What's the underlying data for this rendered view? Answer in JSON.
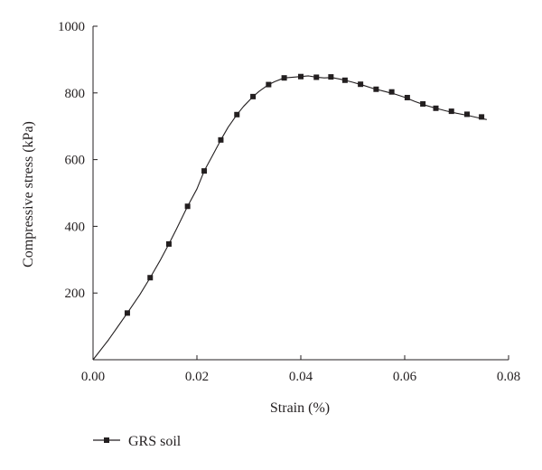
{
  "chart_data": {
    "type": "line",
    "title": "",
    "xlabel": "Strain (%)",
    "ylabel": "Compressive stress (kPa)",
    "xlim": [
      0,
      0.08
    ],
    "ylim": [
      0,
      1000
    ],
    "x_ticks": [
      0.0,
      0.02,
      0.04,
      0.06,
      0.08
    ],
    "x_tick_labels": [
      "0.00",
      "0.02",
      "0.04",
      "0.06",
      "0.08"
    ],
    "y_ticks": [
      200,
      400,
      600,
      800,
      1000
    ],
    "y_tick_labels": [
      "200",
      "400",
      "600",
      "800",
      "1000"
    ],
    "grid": false,
    "legend_position": "bottom-left",
    "series": [
      {
        "name": "GRS soil",
        "color": "#231f20",
        "marker": "square",
        "line": [
          [
            0.0,
            0
          ],
          [
            0.003,
            60
          ],
          [
            0.0066,
            140
          ],
          [
            0.009,
            195
          ],
          [
            0.011,
            246
          ],
          [
            0.013,
            300
          ],
          [
            0.0146,
            347
          ],
          [
            0.016,
            390
          ],
          [
            0.0182,
            460
          ],
          [
            0.02,
            512
          ],
          [
            0.0214,
            566
          ],
          [
            0.023,
            612
          ],
          [
            0.0246,
            659
          ],
          [
            0.026,
            697
          ],
          [
            0.0277,
            735
          ],
          [
            0.029,
            760
          ],
          [
            0.0308,
            789
          ],
          [
            0.032,
            805
          ],
          [
            0.0338,
            825
          ],
          [
            0.035,
            834
          ],
          [
            0.0368,
            845
          ],
          [
            0.0385,
            847
          ],
          [
            0.04,
            849
          ],
          [
            0.0415,
            851
          ],
          [
            0.043,
            847
          ],
          [
            0.0445,
            845
          ],
          [
            0.046,
            846
          ],
          [
            0.048,
            840
          ],
          [
            0.05,
            832
          ],
          [
            0.052,
            823
          ],
          [
            0.054,
            813
          ],
          [
            0.056,
            805
          ],
          [
            0.058,
            797
          ],
          [
            0.06,
            787
          ],
          [
            0.062,
            774
          ],
          [
            0.064,
            763
          ],
          [
            0.066,
            754
          ],
          [
            0.068,
            746
          ],
          [
            0.07,
            739
          ],
          [
            0.072,
            733
          ],
          [
            0.074,
            726
          ],
          [
            0.0758,
            720
          ]
        ],
        "markers": [
          [
            0.0066,
            140
          ],
          [
            0.011,
            246
          ],
          [
            0.0146,
            347
          ],
          [
            0.0182,
            460
          ],
          [
            0.0214,
            566
          ],
          [
            0.0246,
            659
          ],
          [
            0.0277,
            735
          ],
          [
            0.0308,
            789
          ],
          [
            0.0338,
            825
          ],
          [
            0.0368,
            845
          ],
          [
            0.04,
            849
          ],
          [
            0.043,
            847
          ],
          [
            0.0458,
            848
          ],
          [
            0.0485,
            838
          ],
          [
            0.0515,
            826
          ],
          [
            0.0545,
            811
          ],
          [
            0.0575,
            803
          ],
          [
            0.0605,
            786
          ],
          [
            0.0635,
            767
          ],
          [
            0.066,
            754
          ],
          [
            0.069,
            745
          ],
          [
            0.072,
            736
          ],
          [
            0.0748,
            728
          ]
        ]
      }
    ]
  }
}
